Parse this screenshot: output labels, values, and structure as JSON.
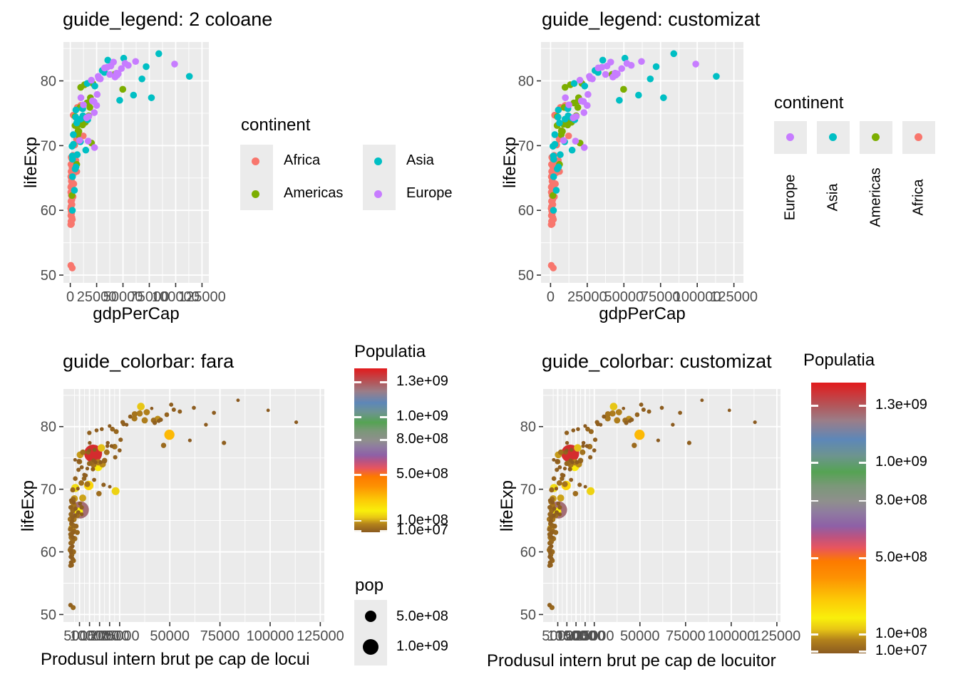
{
  "panels": {
    "tl": {
      "title": "guide_legend: 2 coloane",
      "xlabel": "gdpPerCap",
      "ylabel": "lifeExp",
      "legend": {
        "title": "continent",
        "items": [
          {
            "label": "Africa",
            "color": "#F8766D"
          },
          {
            "label": "Americas",
            "color": "#7CAE00"
          },
          {
            "label": "Asia",
            "color": "#00BFC4"
          },
          {
            "label": "Europe",
            "color": "#C77CFF"
          }
        ]
      }
    },
    "tr": {
      "title": "guide_legend: customizat",
      "xlabel": "gdpPerCap",
      "ylabel": "lifeExp",
      "legend": {
        "title": "continent",
        "items": [
          {
            "label": "Europe",
            "color": "#C77CFF"
          },
          {
            "label": "Asia",
            "color": "#00BFC4"
          },
          {
            "label": "Americas",
            "color": "#7CAE00"
          },
          {
            "label": "Africa",
            "color": "#F8766D"
          }
        ]
      }
    },
    "bl": {
      "title": "guide_colorbar: fara",
      "xlabel": "Produsul intern brut pe cap de locui",
      "ylabel": "lifeExp",
      "colorbar": {
        "title": "Populatia",
        "ticks": [
          "1.3e+09",
          "1.0e+09",
          "8.0e+08",
          "5.0e+08",
          "1.0e+08",
          "1.0e+07"
        ],
        "tick_values": [
          1300,
          1000,
          800,
          500,
          100,
          10
        ]
      },
      "size_legend": {
        "title": "pop",
        "items": [
          {
            "label": "5.0e+08",
            "value": 500
          },
          {
            "label": "1.0e+09",
            "value": 1000
          }
        ]
      }
    },
    "br": {
      "title": "guide_colorbar: customizat",
      "xlabel": "Produsul intern brut pe cap de locuitor",
      "ylabel": "lifeExp",
      "colorbar": {
        "title": "Populatia",
        "ticks": [
          "1.3e+09",
          "1.0e+09",
          "8.0e+08",
          "5.0e+08",
          "1.0e+08",
          "1.0e+07"
        ],
        "tick_values": [
          1300,
          1000,
          800,
          500,
          100,
          10
        ]
      }
    }
  },
  "theme": {
    "panel_bg": "#EBEBEB",
    "grid": "#FFFFFF",
    "tick_label_color": "#4D4D4D",
    "tick_mark_color": "#333333"
  },
  "chart_data": {
    "type": "scatter",
    "x_var": "gdpPerCap",
    "y_var": "lifeExp",
    "x_scale": "linear",
    "y_ticks": [
      50,
      60,
      70,
      80
    ],
    "y_minor": [
      55,
      65,
      75,
      85
    ],
    "x_ticks_top": [
      0,
      25000,
      50000,
      75000,
      100000,
      125000
    ],
    "x_minor_top": [
      12500,
      37500,
      62500,
      87500,
      112500
    ],
    "x_ticks_bottom": [
      5000,
      10000,
      15000,
      20000,
      25000,
      50000,
      75000,
      100000,
      125000
    ],
    "x_minor_bottom": [
      2500,
      7500,
      12500,
      17500,
      22500,
      37500,
      62500,
      87500,
      112500
    ],
    "ylim": [
      48.8,
      86.0
    ],
    "continent_colors": {
      "Africa": "#F8766D",
      "Americas": "#7CAE00",
      "Asia": "#00BFC4",
      "Europe": "#C77CFF"
    },
    "pop_units": "millions",
    "pop_domain_max": 1420,
    "gradient_stops": [
      [
        0.0,
        "#8A5A20"
      ],
      [
        0.05,
        "#B3821B"
      ],
      [
        0.09,
        "#E8C715"
      ],
      [
        0.13,
        "#F9EF0B"
      ],
      [
        0.2,
        "#FCC806"
      ],
      [
        0.28,
        "#FD9102"
      ],
      [
        0.34,
        "#FD7A00"
      ],
      [
        0.39,
        "#E8555E"
      ],
      [
        0.43,
        "#BC5380"
      ],
      [
        0.47,
        "#8E60A6"
      ],
      [
        0.52,
        "#8F7BA0"
      ],
      [
        0.56,
        "#8F8F8D"
      ],
      [
        0.62,
        "#7A9878"
      ],
      [
        0.67,
        "#55A353"
      ],
      [
        0.73,
        "#6D948F"
      ],
      [
        0.79,
        "#5D87B8"
      ],
      [
        0.86,
        "#9B7D88"
      ],
      [
        0.91,
        "#B05A5E"
      ],
      [
        1.0,
        "#E21A1C"
      ]
    ],
    "points": {
      "Africa": [
        [
          520,
          51.5,
          12
        ],
        [
          1850,
          51.1,
          24
        ],
        [
          460,
          57.8,
          10
        ],
        [
          720,
          58.3,
          8
        ],
        [
          1950,
          58.6,
          27
        ],
        [
          560,
          59.2,
          6
        ],
        [
          830,
          59.9,
          11
        ],
        [
          430,
          60.3,
          34
        ],
        [
          1550,
          60.9,
          4.5
        ],
        [
          660,
          61.4,
          19
        ],
        [
          2600,
          62.1,
          33
        ],
        [
          920,
          62.6,
          15
        ],
        [
          1750,
          63.1,
          13
        ],
        [
          490,
          63.6,
          25
        ],
        [
          3300,
          64.1,
          22
        ],
        [
          1020,
          64.5,
          17
        ],
        [
          1280,
          64.9,
          10
        ],
        [
          530,
          65.2,
          43
        ],
        [
          1480,
          65.5,
          12
        ],
        [
          2850,
          65.8,
          5
        ],
        [
          780,
          66.0,
          21
        ],
        [
          4400,
          66.3,
          9
        ],
        [
          1680,
          66.6,
          30
        ],
        [
          3050,
          66.9,
          7
        ],
        [
          640,
          67.1,
          16
        ],
        [
          2150,
          67.4,
          48
        ],
        [
          5300,
          67.7,
          6
        ],
        [
          1350,
          68.0,
          38
        ],
        [
          870,
          68.2,
          11
        ],
        [
          2450,
          68.5,
          92
        ],
        [
          1130,
          63.8,
          85
        ],
        [
          960,
          62.3,
          40
        ],
        [
          1420,
          61.6,
          28
        ],
        [
          710,
          60.6,
          18
        ],
        [
          1170,
          59.5,
          23
        ],
        [
          510,
          62.8,
          14
        ],
        [
          2350,
          63.3,
          31
        ],
        [
          3800,
          65.8,
          37
        ],
        [
          6100,
          66.0,
          3
        ],
        [
          1950,
          64.2,
          26
        ],
        [
          1060,
          57.9,
          20
        ],
        [
          12300,
          71.5,
          6.2
        ],
        [
          5900,
          71.0,
          36
        ],
        [
          4900,
          74.4,
          33
        ],
        [
          6700,
          75.9,
          38
        ],
        [
          2800,
          74.7,
          1.3
        ],
        [
          9900,
          76.2,
          0.9
        ],
        [
          4200,
          70.1,
          2.1
        ],
        [
          1520,
          58.9,
          12
        ],
        [
          820,
          60.1,
          9
        ]
      ],
      "Americas": [
        [
          49800,
          78.7,
          316
        ],
        [
          41900,
          81.0,
          35
        ],
        [
          15900,
          76.6,
          122
        ],
        [
          14300,
          73.6,
          201
        ],
        [
          18600,
          75.9,
          41
        ],
        [
          21400,
          79.6,
          17.6
        ],
        [
          12000,
          73.9,
          48
        ],
        [
          11100,
          74.2,
          30
        ],
        [
          17500,
          74.6,
          30
        ],
        [
          9300,
          75.9,
          15.7
        ],
        [
          6100,
          67.1,
          10.5
        ],
        [
          8100,
          72.2,
          6.8
        ],
        [
          18900,
          76.9,
          3.4
        ],
        [
          13500,
          79.4,
          4.9
        ],
        [
          19100,
          77.4,
          3.9
        ],
        [
          11700,
          73.2,
          10.4
        ],
        [
          4500,
          73.1,
          8.1
        ],
        [
          7400,
          72.3,
          6.3
        ],
        [
          7300,
          71.7,
          15.8
        ],
        [
          4600,
          74.5,
          6.1
        ],
        [
          1650,
          62.3,
          10.3
        ],
        [
          8900,
          73.3,
          2.7
        ],
        [
          20100,
          70.4,
          1.3
        ],
        [
          9900,
          79.0,
          11.3
        ],
        [
          13100,
          74.3,
          3.0
        ]
      ],
      "Asia": [
        [
          35600,
          83.2,
          127
        ],
        [
          32400,
          81.3,
          50
        ],
        [
          11800,
          75.7,
          1385
        ],
        [
          5400,
          66.7,
          1252
        ],
        [
          72000,
          82.2,
          5.4
        ],
        [
          50700,
          83.5,
          7.2
        ],
        [
          113000,
          80.7,
          2.1
        ],
        [
          84000,
          84.2,
          0.6
        ],
        [
          68000,
          80.3,
          3.1
        ],
        [
          77000,
          77.4,
          9.2
        ],
        [
          60000,
          77.8,
          2.1
        ],
        [
          46900,
          77.0,
          29
        ],
        [
          16500,
          74.0,
          77
        ],
        [
          6600,
          68.6,
          98
        ],
        [
          14400,
          74.3,
          67
        ],
        [
          9600,
          70.6,
          250
        ],
        [
          5300,
          75.5,
          91
        ],
        [
          2950,
          70.2,
          157
        ],
        [
          4600,
          66.4,
          182
        ],
        [
          2100,
          65.2,
          53
        ],
        [
          9900,
          74.1,
          21
        ],
        [
          1900,
          68.4,
          28
        ],
        [
          2000,
          60.0,
          31
        ],
        [
          6100,
          73.5,
          6.5
        ],
        [
          16100,
          79.6,
          4.5
        ],
        [
          12000,
          74.6,
          6.1
        ],
        [
          5100,
          74.4,
          22
        ],
        [
          14700,
          69.3,
          34
        ],
        [
          3900,
          63.1,
          24
        ],
        [
          2900,
          71.7,
          15
        ],
        [
          2150,
          67.9,
          6.6
        ],
        [
          23300,
          79.2,
          23
        ],
        [
          30300,
          81.6,
          7.7
        ],
        [
          1650,
          69.9,
          25
        ]
      ],
      "Europe": [
        [
          99000,
          82.6,
          0.5
        ],
        [
          62000,
          83.0,
          5.0
        ],
        [
          55000,
          82.4,
          8.0
        ],
        [
          48500,
          81.9,
          16.7
        ],
        [
          44000,
          81.2,
          82
        ],
        [
          38500,
          82.3,
          65
        ],
        [
          37500,
          81.0,
          63
        ],
        [
          52000,
          82.7,
          7.9
        ],
        [
          45500,
          81.1,
          8.4
        ],
        [
          42500,
          80.6,
          11
        ],
        [
          35000,
          82.1,
          60
        ],
        [
          32500,
          82.0,
          46
        ],
        [
          27000,
          80.4,
          10.6
        ],
        [
          26500,
          80.7,
          11.3
        ],
        [
          22500,
          76.8,
          38
        ],
        [
          25500,
          77.9,
          10.5
        ],
        [
          25000,
          76.2,
          5.4
        ],
        [
          22800,
          75.1,
          9.9
        ],
        [
          17500,
          74.5,
          20
        ],
        [
          15500,
          74.3,
          7.3
        ],
        [
          20000,
          80.1,
          2.1
        ],
        [
          23000,
          69.7,
          143
        ],
        [
          8900,
          70.8,
          45
        ],
        [
          17000,
          70.7,
          9.5
        ],
        [
          10100,
          77.4,
          2.9
        ],
        [
          21000,
          76.9,
          4.3
        ],
        [
          28500,
          80.3,
          2.1
        ],
        [
          12500,
          76.3,
          3.8
        ],
        [
          41000,
          82.9,
          0.3
        ],
        [
          44500,
          80.9,
          4.6
        ]
      ]
    }
  }
}
